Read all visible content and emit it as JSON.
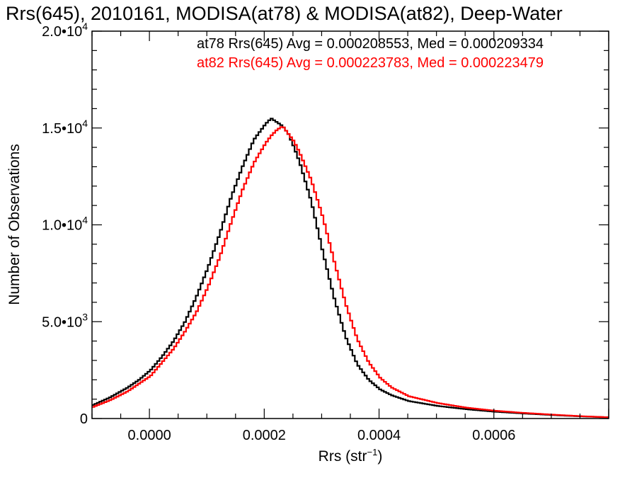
{
  "chart_data": {
    "type": "line",
    "title": "Rrs(645), 2010161, MODISA(at78) & MODISA(at82), Deep-Water",
    "xlabel": "Rrs (str",
    "xlabel_sup": "−1",
    "xlabel_end": ")",
    "ylabel": "Number of Observations",
    "xlim": [
      -0.0001,
      0.0008
    ],
    "ylim": [
      0,
      20000
    ],
    "grid": false,
    "x_ticks": [
      {
        "value": 0.0,
        "label": "0.0000"
      },
      {
        "value": 0.0002,
        "label": "0.0002"
      },
      {
        "value": 0.0004,
        "label": "0.0004"
      },
      {
        "value": 0.0006,
        "label": "0.0006"
      }
    ],
    "y_ticks": [
      {
        "value": 0,
        "label": "0",
        "exp": ""
      },
      {
        "value": 5000,
        "label": "5.0•10",
        "exp": "3"
      },
      {
        "value": 10000,
        "label": "1.0•10",
        "exp": "4"
      },
      {
        "value": 15000,
        "label": "1.5•10",
        "exp": "4"
      },
      {
        "value": 20000,
        "label": "2.0•10",
        "exp": "4"
      }
    ],
    "annotations": [
      {
        "text": "at78 Rrs(645) Avg = 0.000208553, Med = 0.000209334",
        "color": "#000000"
      },
      {
        "text": "at82 Rrs(645) Avg = 0.000223783, Med = 0.000223479",
        "color": "#ff0000"
      }
    ],
    "series": [
      {
        "color": "#000000",
        "x": [
          -0.0001,
          -7e-05,
          -4e-05,
          -2e-05,
          0.0,
          2e-05,
          4e-05,
          6e-05,
          8e-05,
          0.0001,
          0.00012,
          0.00014,
          0.00016,
          0.00018,
          0.0002,
          0.00021,
          0.00022,
          0.00023,
          0.00024,
          0.00025,
          0.00026,
          0.00028,
          0.0003,
          0.00032,
          0.00034,
          0.00036,
          0.00038,
          0.0004,
          0.00042,
          0.00045,
          0.0005,
          0.00055,
          0.0006,
          0.00065,
          0.0007,
          0.00075,
          0.0008
        ],
        "y": [
          700,
          1100,
          1600,
          2000,
          2500,
          3200,
          4000,
          5000,
          6300,
          7800,
          9500,
          11400,
          13000,
          14400,
          15200,
          15500,
          15300,
          15100,
          14700,
          14000,
          13200,
          11200,
          8600,
          6200,
          4200,
          2800,
          2000,
          1500,
          1200,
          900,
          650,
          480,
          350,
          260,
          180,
          110,
          60
        ]
      },
      {
        "color": "#ff0000",
        "x": [
          -0.0001,
          -7e-05,
          -4e-05,
          -2e-05,
          0.0,
          2e-05,
          4e-05,
          6e-05,
          8e-05,
          0.0001,
          0.00012,
          0.00014,
          0.00016,
          0.00018,
          0.0002,
          0.00021,
          0.00022,
          0.00023,
          0.00024,
          0.00025,
          0.00026,
          0.00028,
          0.0003,
          0.00032,
          0.00034,
          0.00036,
          0.00038,
          0.0004,
          0.00042,
          0.00045,
          0.0005,
          0.00055,
          0.0006,
          0.00065,
          0.0007,
          0.00075,
          0.0008
        ],
        "y": [
          600,
          950,
          1400,
          1800,
          2200,
          2900,
          3600,
          4500,
          5500,
          6800,
          8300,
          10100,
          11800,
          13200,
          14200,
          14600,
          14900,
          15100,
          14700,
          14300,
          13700,
          12300,
          10400,
          8100,
          5900,
          4100,
          2900,
          2100,
          1600,
          1150,
          800,
          560,
          400,
          290,
          200,
          120,
          60
        ]
      }
    ]
  }
}
